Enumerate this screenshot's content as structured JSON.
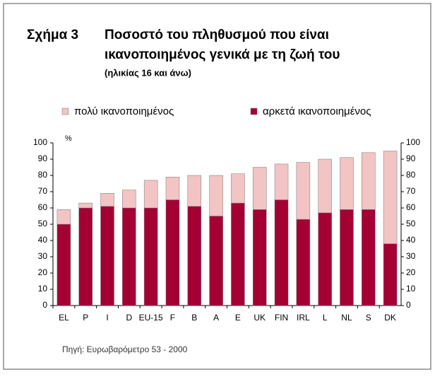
{
  "chart_data": {
    "type": "stacked_bar",
    "figure_label": "Σχήμα 3",
    "title": [
      "Ποσοστό του πληθυσμού που είναι",
      "ικανοποιημένος γενικά με τη ζωή του"
    ],
    "subtitle": "(ηλικίας 16 και άνω)",
    "y_label": "%",
    "source": "Πηγή: Ευρωβαρόμετρο 53 - 2000",
    "categories": [
      "EL",
      "P",
      "I",
      "D",
      "EU-15",
      "F",
      "B",
      "A",
      "E",
      "UK",
      "FIN",
      "IRL",
      "L",
      "NL",
      "S",
      "DK"
    ],
    "series": [
      {
        "name": "αρκετά ικανοποιημένος",
        "color": "#a50034",
        "values": [
          50,
          60,
          61,
          60,
          60,
          65,
          61,
          55,
          63,
          59,
          65,
          53,
          57,
          59,
          59,
          38
        ]
      },
      {
        "name": "πολύ ικανοποιημένος",
        "color": "#f2c4c4",
        "values": [
          9,
          3,
          8,
          11,
          17,
          14,
          19,
          25,
          18,
          26,
          22,
          35,
          33,
          32,
          35,
          57
        ]
      }
    ],
    "legend_order": [
      1,
      0
    ],
    "ylim": [
      0,
      100
    ],
    "yticks": [
      0,
      10,
      20,
      30,
      40,
      50,
      60,
      70,
      80,
      90,
      100
    ],
    "y2lim": [
      0,
      100
    ],
    "y2ticks": [
      0,
      10,
      20,
      30,
      40,
      50,
      60,
      70,
      80,
      90,
      100
    ],
    "grid": false
  }
}
